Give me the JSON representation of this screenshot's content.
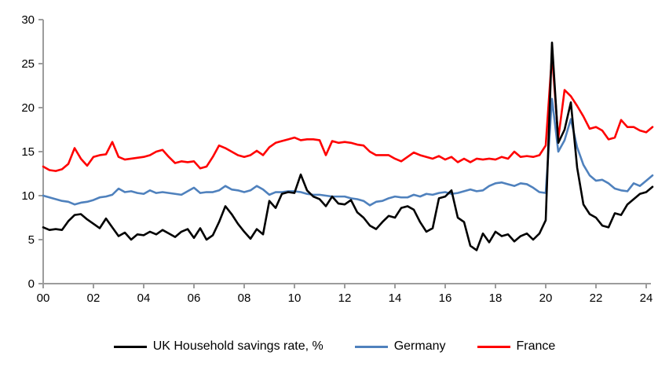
{
  "chart_data": {
    "type": "line",
    "title": "",
    "frequency": "quarterly",
    "x_start_year": 2000,
    "x_end": "2024 Q2",
    "x_tick_labels": [
      "00",
      "02",
      "04",
      "06",
      "08",
      "10",
      "12",
      "14",
      "16",
      "18",
      "20",
      "22",
      "24"
    ],
    "y_ticks": [
      0,
      5,
      10,
      15,
      20,
      25,
      30
    ],
    "ylim": [
      0,
      30
    ],
    "grid": false,
    "legend_position": "bottom",
    "axis_color": "#9C9C9C",
    "series": [
      {
        "name": "UK Household savings rate, %",
        "color": "#000000",
        "values": [
          6.4,
          6.1,
          6.2,
          6.1,
          7.1,
          7.8,
          7.9,
          7.3,
          6.8,
          6.3,
          7.4,
          6.4,
          5.4,
          5.8,
          5.0,
          5.6,
          5.5,
          5.9,
          5.6,
          6.1,
          5.7,
          5.3,
          5.9,
          6.2,
          5.2,
          6.3,
          5.0,
          5.5,
          7.0,
          8.8,
          7.9,
          6.8,
          5.9,
          5.1,
          6.2,
          5.6,
          9.4,
          8.6,
          10.2,
          10.4,
          10.3,
          12.4,
          10.6,
          9.9,
          9.6,
          8.8,
          9.9,
          9.1,
          9.0,
          9.5,
          8.1,
          7.5,
          6.6,
          6.2,
          7.0,
          7.7,
          7.5,
          8.6,
          8.8,
          8.4,
          7.0,
          5.9,
          6.3,
          9.7,
          9.9,
          10.6,
          7.5,
          7.0,
          4.3,
          3.8,
          5.7,
          4.7,
          5.9,
          5.4,
          5.6,
          4.8,
          5.4,
          5.7,
          5.0,
          5.7,
          7.2,
          27.4,
          16.0,
          17.5,
          20.6,
          13.2,
          9.0,
          7.9,
          7.5,
          6.6,
          6.4,
          8.0,
          7.8,
          9.0,
          9.6,
          10.2,
          10.4,
          11.0
        ]
      },
      {
        "name": "Germany",
        "color": "#4F81BD",
        "values": [
          10.0,
          9.8,
          9.6,
          9.4,
          9.3,
          9.0,
          9.2,
          9.3,
          9.5,
          9.8,
          9.9,
          10.1,
          10.8,
          10.4,
          10.5,
          10.3,
          10.2,
          10.6,
          10.3,
          10.4,
          10.3,
          10.2,
          10.1,
          10.5,
          10.9,
          10.3,
          10.4,
          10.4,
          10.6,
          11.1,
          10.7,
          10.6,
          10.4,
          10.6,
          11.1,
          10.7,
          10.1,
          10.4,
          10.4,
          10.5,
          10.5,
          10.4,
          10.2,
          10.1,
          10.1,
          10.0,
          9.9,
          9.9,
          9.9,
          9.7,
          9.6,
          9.4,
          8.9,
          9.3,
          9.4,
          9.7,
          9.9,
          9.8,
          9.8,
          10.1,
          9.9,
          10.2,
          10.1,
          10.3,
          10.4,
          10.2,
          10.3,
          10.5,
          10.7,
          10.5,
          10.6,
          11.1,
          11.4,
          11.5,
          11.3,
          11.1,
          11.4,
          11.3,
          10.9,
          10.4,
          10.3,
          21.0,
          15.0,
          16.3,
          18.7,
          15.5,
          13.5,
          12.3,
          11.7,
          11.8,
          11.4,
          10.8,
          10.6,
          10.5,
          11.4,
          11.1,
          11.7,
          12.3
        ]
      },
      {
        "name": "France",
        "color": "#FF0000",
        "values": [
          13.3,
          12.9,
          12.8,
          13.0,
          13.6,
          15.4,
          14.2,
          13.4,
          14.4,
          14.6,
          14.7,
          16.1,
          14.4,
          14.1,
          14.2,
          14.3,
          14.4,
          14.6,
          15.0,
          15.2,
          14.4,
          13.7,
          13.9,
          13.8,
          13.9,
          13.1,
          13.3,
          14.4,
          15.7,
          15.4,
          15.0,
          14.6,
          14.4,
          14.6,
          15.1,
          14.6,
          15.5,
          16.0,
          16.2,
          16.4,
          16.6,
          16.3,
          16.4,
          16.4,
          16.3,
          14.6,
          16.2,
          16.0,
          16.1,
          16.0,
          15.8,
          15.7,
          15.0,
          14.6,
          14.6,
          14.6,
          14.2,
          13.9,
          14.4,
          14.9,
          14.6,
          14.4,
          14.2,
          14.5,
          14.1,
          14.4,
          13.8,
          14.2,
          13.8,
          14.2,
          14.1,
          14.2,
          14.1,
          14.4,
          14.2,
          15.0,
          14.4,
          14.5,
          14.4,
          14.6,
          15.7,
          26.0,
          16.5,
          22.0,
          21.3,
          20.2,
          19.0,
          17.6,
          17.8,
          17.4,
          16.4,
          16.6,
          18.6,
          17.8,
          17.8,
          17.4,
          17.2,
          17.8
        ]
      }
    ]
  },
  "legend": {
    "uk_label": "UK Household savings rate, %",
    "germany_label": "Germany",
    "france_label": "France"
  }
}
